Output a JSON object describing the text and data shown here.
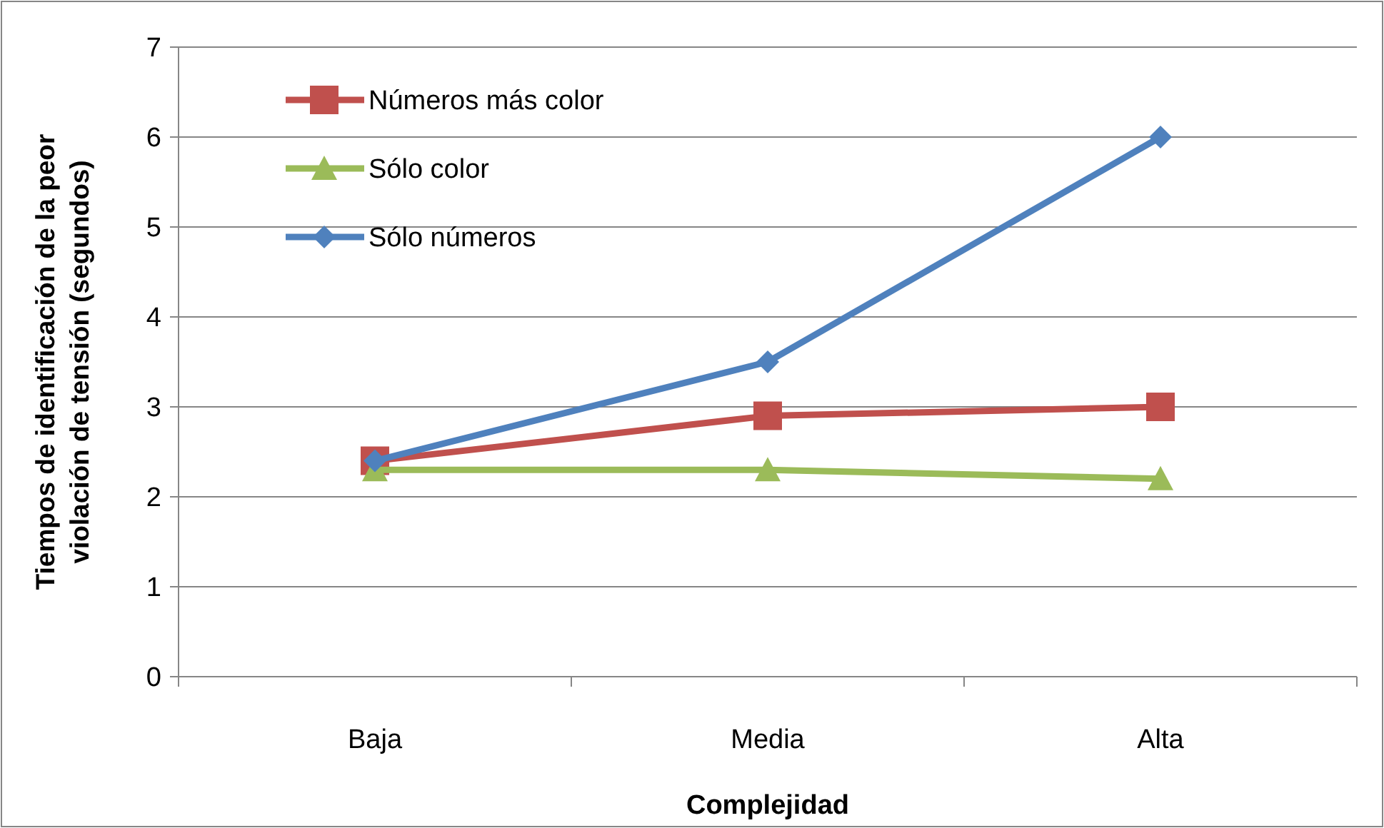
{
  "chart_data": {
    "type": "line",
    "xlabel": "Complejidad",
    "ylabel": "Tiempos de identificación de la peor\nviolación de tensión (segundos)",
    "categories": [
      "Baja",
      "Media",
      "Alta"
    ],
    "series": [
      {
        "name": "Números más color",
        "color": "#c0504d",
        "marker": "square",
        "values": [
          2.4,
          2.9,
          3.0
        ]
      },
      {
        "name": "Sólo color",
        "color": "#9bbb59",
        "marker": "triangle",
        "values": [
          2.3,
          2.3,
          2.2
        ]
      },
      {
        "name": "Sólo números",
        "color": "#4f81bd",
        "marker": "diamond",
        "values": [
          2.4,
          3.5,
          6.0
        ]
      }
    ],
    "ylim": [
      0,
      7
    ],
    "yticks": [
      0,
      1,
      2,
      3,
      4,
      5,
      6,
      7
    ],
    "grid": "y",
    "legend": "top left",
    "line_style": "solid"
  }
}
